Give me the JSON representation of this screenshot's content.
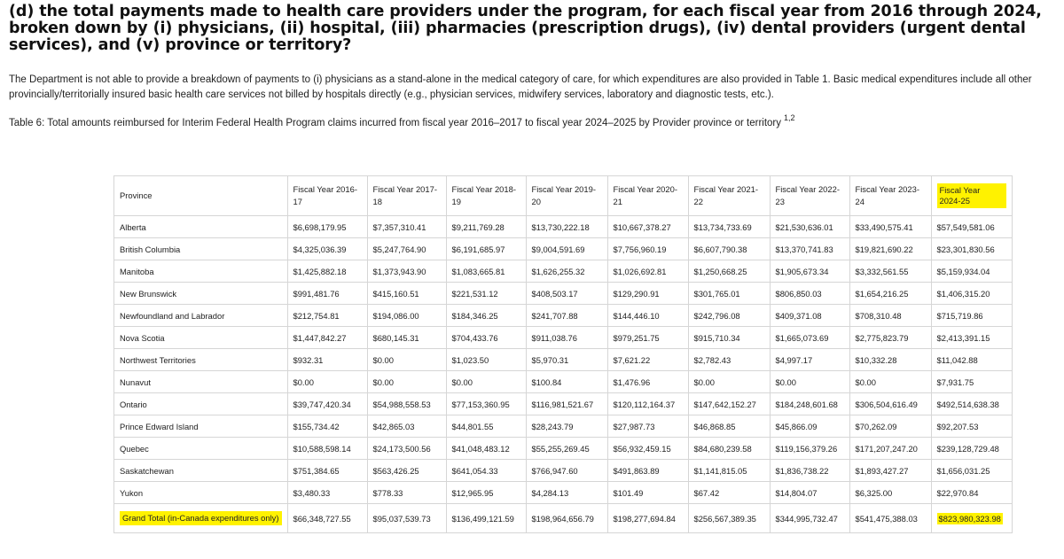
{
  "question": "(d) the total payments made to health care providers under the program, for each fiscal year from 2016 through 2024, broken down by (i) physicians, (ii) hospital, (iii) pharmacies (prescription drugs), (iv) dental providers (urgent dental services), and (v) province or territory?",
  "paragraph": "The Department is not able to provide a breakdown of payments to (i) physicians as a stand-alone in the medical category of care, for which expenditures are also provided in Table 1. Basic medical expenditures include all other provincially/territorially insured basic health care services not billed by hospitals directly (e.g., physician services, midwifery services, laboratory and diagnostic tests, etc.).",
  "caption": "Table 6: Total amounts reimbursed for Interim Federal Health Program claims incurred from fiscal year 2016–2017 to fiscal year 2024–2025 by Provider province or territory",
  "caption_sup": "1,2",
  "highlight_color": "#fff200",
  "table": {
    "headers": [
      "Province",
      "Fiscal Year 2016-17",
      "Fiscal Year 2017-18",
      "Fiscal Year 2018-19",
      "Fiscal Year 2019-20",
      "Fiscal Year 2020-21",
      "Fiscal Year 2021-22",
      "Fiscal Year 2022-23",
      "Fiscal Year 2023-24",
      "Fiscal Year 2024-25"
    ],
    "rows": [
      [
        "Alberta",
        "$6,698,179.95",
        "$7,357,310.41",
        "$9,211,769.28",
        "$13,730,222.18",
        "$10,667,378.27",
        "$13,734,733.69",
        "$21,530,636.01",
        "$33,490,575.41",
        "$57,549,581.06"
      ],
      [
        "British Columbia",
        "$4,325,036.39",
        "$5,247,764.90",
        "$6,191,685.97",
        "$9,004,591.69",
        "$7,756,960.19",
        "$6,607,790.38",
        "$13,370,741.83",
        "$19,821,690.22",
        "$23,301,830.56"
      ],
      [
        "Manitoba",
        "$1,425,882.18",
        "$1,373,943.90",
        "$1,083,665.81",
        "$1,626,255.32",
        "$1,026,692.81",
        "$1,250,668.25",
        "$1,905,673.34",
        "$3,332,561.55",
        "$5,159,934.04"
      ],
      [
        "New Brunswick",
        "$991,481.76",
        "$415,160.51",
        "$221,531.12",
        "$408,503.17",
        "$129,290.91",
        "$301,765.01",
        "$806,850.03",
        "$1,654,216.25",
        "$1,406,315.20"
      ],
      [
        "Newfoundland and Labrador",
        "$212,754.81",
        "$194,086.00",
        "$184,346.25",
        "$241,707.88",
        "$144,446.10",
        "$242,796.08",
        "$409,371.08",
        "$708,310.48",
        "$715,719.86"
      ],
      [
        "Nova Scotia",
        "$1,447,842.27",
        "$680,145.31",
        "$704,433.76",
        "$911,038.76",
        "$979,251.75",
        "$915,710.34",
        "$1,665,073.69",
        "$2,775,823.79",
        "$2,413,391.15"
      ],
      [
        "Northwest Territories",
        "$932.31",
        "$0.00",
        "$1,023.50",
        "$5,970.31",
        "$7,621.22",
        "$2,782.43",
        "$4,997.17",
        "$10,332.28",
        "$11,042.88"
      ],
      [
        "Nunavut",
        "$0.00",
        "$0.00",
        "$0.00",
        "$100.84",
        "$1,476.96",
        "$0.00",
        "$0.00",
        "$0.00",
        "$7,931.75"
      ],
      [
        "Ontario",
        "$39,747,420.34",
        "$54,988,558.53",
        "$77,153,360.95",
        "$116,981,521.67",
        "$120,112,164.37",
        "$147,642,152.27",
        "$184,248,601.68",
        "$306,504,616.49",
        "$492,514,638.38"
      ],
      [
        "Prince Edward Island",
        "$155,734.42",
        "$42,865.03",
        "$44,801.55",
        "$28,243.79",
        "$27,987.73",
        "$46,868.85",
        "$45,866.09",
        "$70,262.09",
        "$92,207.53"
      ],
      [
        "Quebec",
        "$10,588,598.14",
        "$24,173,500.56",
        "$41,048,483.12",
        "$55,255,269.45",
        "$56,932,459.15",
        "$84,680,239.58",
        "$119,156,379.26",
        "$171,207,247.20",
        "$239,128,729.48"
      ],
      [
        "Saskatchewan",
        "$751,384.65",
        "$563,426.25",
        "$641,054.33",
        "$766,947.60",
        "$491,863.89",
        "$1,141,815.05",
        "$1,836,738.22",
        "$1,893,427.27",
        "$1,656,031.25"
      ],
      [
        "Yukon",
        "$3,480.33",
        "$778.33",
        "$12,965.95",
        "$4,284.13",
        "$101.49",
        "$67.42",
        "$14,804.07",
        "$6,325.00",
        "$22,970.84"
      ]
    ],
    "total_row": [
      "Grand Total (in-Canada expenditures only)",
      "$66,348,727.55",
      "$95,037,539.73",
      "$136,499,121.59",
      "$198,964,656.79",
      "$198,277,694.84",
      "$256,567,389.35",
      "$344,995,732.47",
      "$541,475,388.03",
      "$823,980,323.98"
    ]
  }
}
